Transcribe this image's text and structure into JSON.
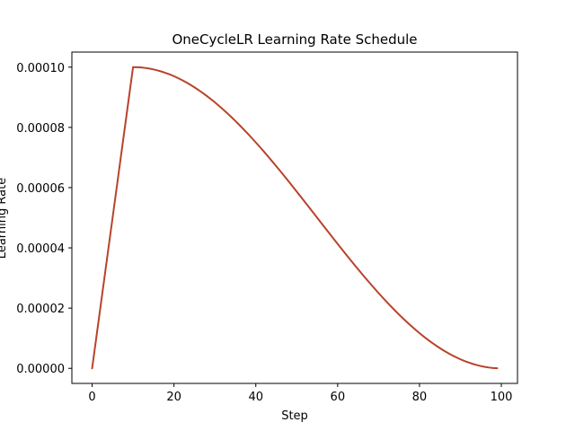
{
  "chart_data": {
    "type": "line",
    "title": "OneCycleLR Learning Rate Schedule",
    "xlabel": "Step",
    "ylabel": "Learning Rate",
    "xlim": [
      -4.95,
      103.95
    ],
    "ylim": [
      -5e-06,
      0.000105
    ],
    "grid": false,
    "x_ticks": [
      0,
      20,
      40,
      60,
      80,
      100
    ],
    "x_tick_labels": [
      "0",
      "20",
      "40",
      "60",
      "80",
      "100"
    ],
    "y_ticks": [
      0,
      2e-05,
      4e-05,
      6e-05,
      8e-05,
      0.0001
    ],
    "y_tick_labels": [
      "0.00000",
      "0.00002",
      "0.00004",
      "0.00006",
      "0.00008",
      "0.00010"
    ],
    "series": [
      {
        "color": "#b8432b",
        "x": [
          0,
          1,
          2,
          3,
          4,
          5,
          6,
          7,
          8,
          9,
          10,
          11,
          12,
          13,
          14,
          15,
          16,
          17,
          18,
          19,
          20,
          21,
          22,
          23,
          24,
          25,
          26,
          27,
          28,
          29,
          30,
          31,
          32,
          33,
          34,
          35,
          36,
          37,
          38,
          39,
          40,
          41,
          42,
          43,
          44,
          45,
          46,
          47,
          48,
          49,
          50,
          51,
          52,
          53,
          54,
          55,
          56,
          57,
          58,
          59,
          60,
          61,
          62,
          63,
          64,
          65,
          66,
          67,
          68,
          69,
          70,
          71,
          72,
          73,
          74,
          75,
          76,
          77,
          78,
          79,
          80,
          81,
          82,
          83,
          84,
          85,
          86,
          87,
          88,
          89,
          90,
          91,
          92,
          93,
          94,
          95,
          96,
          97,
          98,
          99
        ],
        "y": [
          0.0,
          1e-05,
          2e-05,
          3e-05,
          4e-05,
          5e-05,
          6e-05,
          7e-05,
          8e-05,
          9e-05,
          0.0001,
          9.99695e-05,
          9.98782e-05,
          9.97261e-05,
          9.95134e-05,
          9.92404e-05,
          9.89074e-05,
          9.85148e-05,
          9.80631e-05,
          9.75528e-05,
          9.69846e-05,
          9.63592e-05,
          9.56773e-05,
          9.49397e-05,
          9.41474e-05,
          9.33013e-05,
          9.24024e-05,
          9.14519e-05,
          9.04508e-05,
          8.94005e-05,
          8.83022e-05,
          8.71572e-05,
          8.5967e-05,
          8.47329e-05,
          8.34565e-05,
          8.21394e-05,
          8.07831e-05,
          7.93893e-05,
          7.79596e-05,
          7.64958e-05,
          7.5e-05,
          7.34736e-05,
          7.19186e-05,
          7.03368e-05,
          6.87303e-05,
          6.7101e-05,
          6.54508e-05,
          6.37819e-05,
          6.20961e-05,
          6.03956e-05,
          5.86824e-05,
          5.69587e-05,
          5.52264e-05,
          5.34878e-05,
          5.1745e-05,
          5e-05,
          4.8255e-05,
          4.65122e-05,
          4.47736e-05,
          4.30413e-05,
          4.13176e-05,
          3.96044e-05,
          3.79039e-05,
          3.62181e-05,
          3.45492e-05,
          3.2899e-05,
          3.12697e-05,
          2.96632e-05,
          2.80814e-05,
          2.65264e-05,
          2.5e-05,
          2.35042e-05,
          2.20404e-05,
          2.06107e-05,
          1.92169e-05,
          1.78606e-05,
          1.65435e-05,
          1.52671e-05,
          1.4033e-05,
          1.28428e-05,
          1.16978e-05,
          1.05995e-05,
          9.5492e-06,
          8.5481e-06,
          7.5976e-06,
          6.6987e-06,
          5.8526e-06,
          5.0603e-06,
          4.3227e-06,
          3.6408e-06,
          3.0154e-06,
          2.4472e-06,
          1.9369e-06,
          1.4852e-06,
          1.0926e-06,
          7.596e-07,
          4.866e-07,
          2.739e-07,
          1.218e-07,
          3.05e-08
        ]
      }
    ]
  }
}
